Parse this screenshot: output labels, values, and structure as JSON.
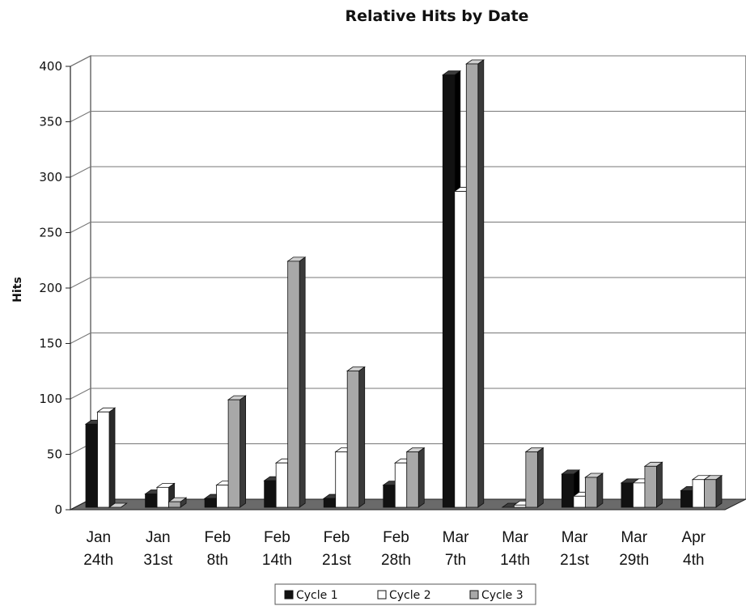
{
  "chart_data": {
    "type": "bar",
    "title": "Relative Hits by Date",
    "xlabel": "",
    "ylabel": "Hits",
    "ylim": [
      0,
      400
    ],
    "yticks": [
      "0",
      "50",
      "100",
      "150",
      "200",
      "250",
      "300",
      "350",
      "400"
    ],
    "categories": [
      [
        "Jan",
        "24th"
      ],
      [
        "Jan",
        "31st"
      ],
      [
        "Feb",
        "8th"
      ],
      [
        "Feb",
        "14th"
      ],
      [
        "Feb",
        "21st"
      ],
      [
        "Feb",
        "28th"
      ],
      [
        "Mar",
        "7th"
      ],
      [
        "Mar",
        "14th"
      ],
      [
        "Mar",
        "21st"
      ],
      [
        "Mar",
        "29th"
      ],
      [
        "Apr",
        "4th"
      ]
    ],
    "series": [
      {
        "name": "Cycle 1",
        "color": "#111111",
        "values": [
          75,
          12,
          8,
          24,
          8,
          20,
          390,
          0,
          30,
          22,
          15
        ]
      },
      {
        "name": "Cycle 2",
        "color": "#ffffff",
        "values": [
          86,
          18,
          20,
          40,
          50,
          40,
          285,
          2,
          10,
          22,
          25
        ]
      },
      {
        "name": "Cycle 3",
        "color": "#a8a8a8",
        "values": [
          0,
          5,
          97,
          222,
          123,
          50,
          400,
          50,
          27,
          37,
          25
        ]
      }
    ],
    "grid": true,
    "legend": "bottom"
  }
}
